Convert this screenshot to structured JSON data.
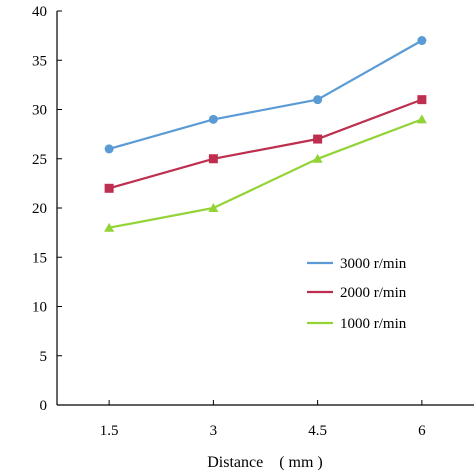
{
  "chart_data": {
    "type": "line",
    "title": "",
    "xlabel": "Distance　( mm )",
    "ylabel": "",
    "x": [
      1.5,
      3,
      4.5,
      6
    ],
    "x_tick_labels": [
      "1.5",
      "3",
      "4.5",
      "6"
    ],
    "y_ticks": [
      0,
      5,
      10,
      15,
      20,
      25,
      30,
      35,
      40
    ],
    "y_tick_labels": [
      "0",
      "5",
      "10",
      "15",
      "20",
      "25",
      "30",
      "35",
      "40"
    ],
    "ylim": [
      0,
      40
    ],
    "xlim": [
      0.75,
      6.75
    ],
    "grid": false,
    "legend_position": "center-right",
    "series": [
      {
        "name": "3000 r/min",
        "values": [
          26,
          29,
          31,
          37
        ],
        "color": "#5b9bd5",
        "marker": "circle"
      },
      {
        "name": "2000 r/min",
        "values": [
          22,
          25,
          27,
          31
        ],
        "color": "#be2f4f",
        "marker": "square"
      },
      {
        "name": "1000 r/min",
        "values": [
          18,
          20,
          25,
          29
        ],
        "color": "#92d336",
        "marker": "triangle"
      }
    ]
  }
}
